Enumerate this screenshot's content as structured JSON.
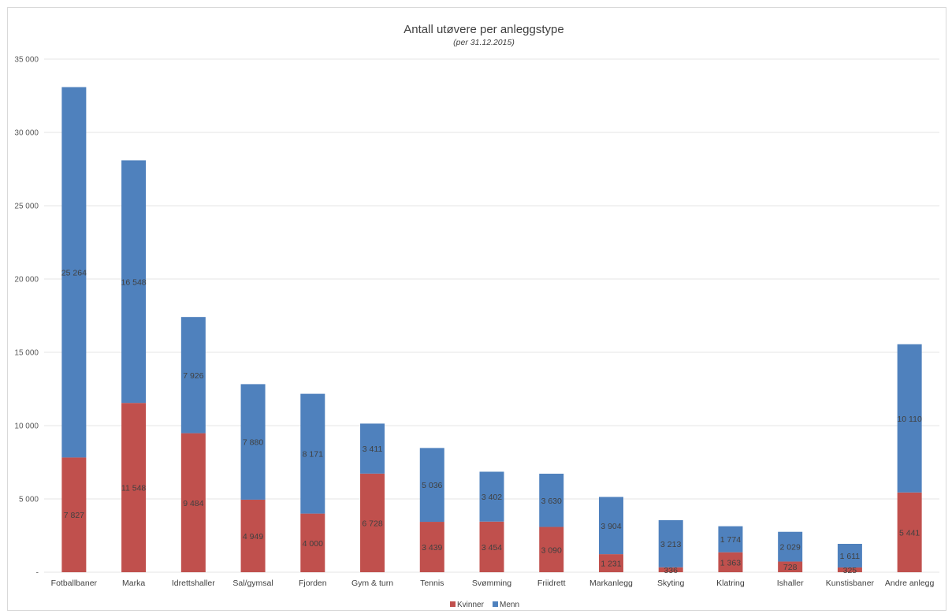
{
  "chart_data": {
    "type": "bar",
    "stacked": true,
    "title": "Antall utøvere per anleggstype",
    "subtitle": "(per 31.12.2015)",
    "categories": [
      "Fotballbaner",
      "Marka",
      "Idrettshaller",
      "Sal/gymsal",
      "Fjorden",
      "Gym & turn",
      "Tennis",
      "Svømming",
      "Friidrett",
      "Markanlegg",
      "Skyting",
      "Klatring",
      "Ishaller",
      "Kunstisbaner",
      "Andre anlegg"
    ],
    "series": [
      {
        "name": "Kvinner",
        "color": "#c0504d",
        "values": [
          7827,
          11548,
          9484,
          4949,
          4000,
          6728,
          3439,
          3454,
          3090,
          1231,
          336,
          1363,
          728,
          325,
          5441
        ],
        "labels": [
          "7 827",
          "11 548",
          "9 484",
          "4 949",
          "4 000",
          "6 728",
          "3 439",
          "3 454",
          "3 090",
          "1 231",
          "336",
          "1 363",
          "728",
          "325",
          "5 441"
        ]
      },
      {
        "name": "Menn",
        "color": "#4f81bd",
        "values": [
          25264,
          16548,
          7926,
          7880,
          8171,
          3411,
          5036,
          3402,
          3630,
          3904,
          3213,
          1774,
          2029,
          1611,
          10110
        ],
        "labels": [
          "25 264",
          "16 548",
          "7 926",
          "7 880",
          "8 171",
          "3 411",
          "5 036",
          "3 402",
          "3 630",
          "3 904",
          "3 213",
          "1 774",
          "2 029",
          "1 611",
          "10 110"
        ]
      }
    ],
    "ylim": [
      0,
      35000
    ],
    "yticks": [
      0,
      5000,
      10000,
      15000,
      20000,
      25000,
      30000,
      35000
    ],
    "ytick_labels": [
      "-",
      "5 000",
      "10 000",
      "15 000",
      "20 000",
      "25 000",
      "30 000",
      "35 000"
    ],
    "grid": true,
    "legend_position": "bottom"
  }
}
